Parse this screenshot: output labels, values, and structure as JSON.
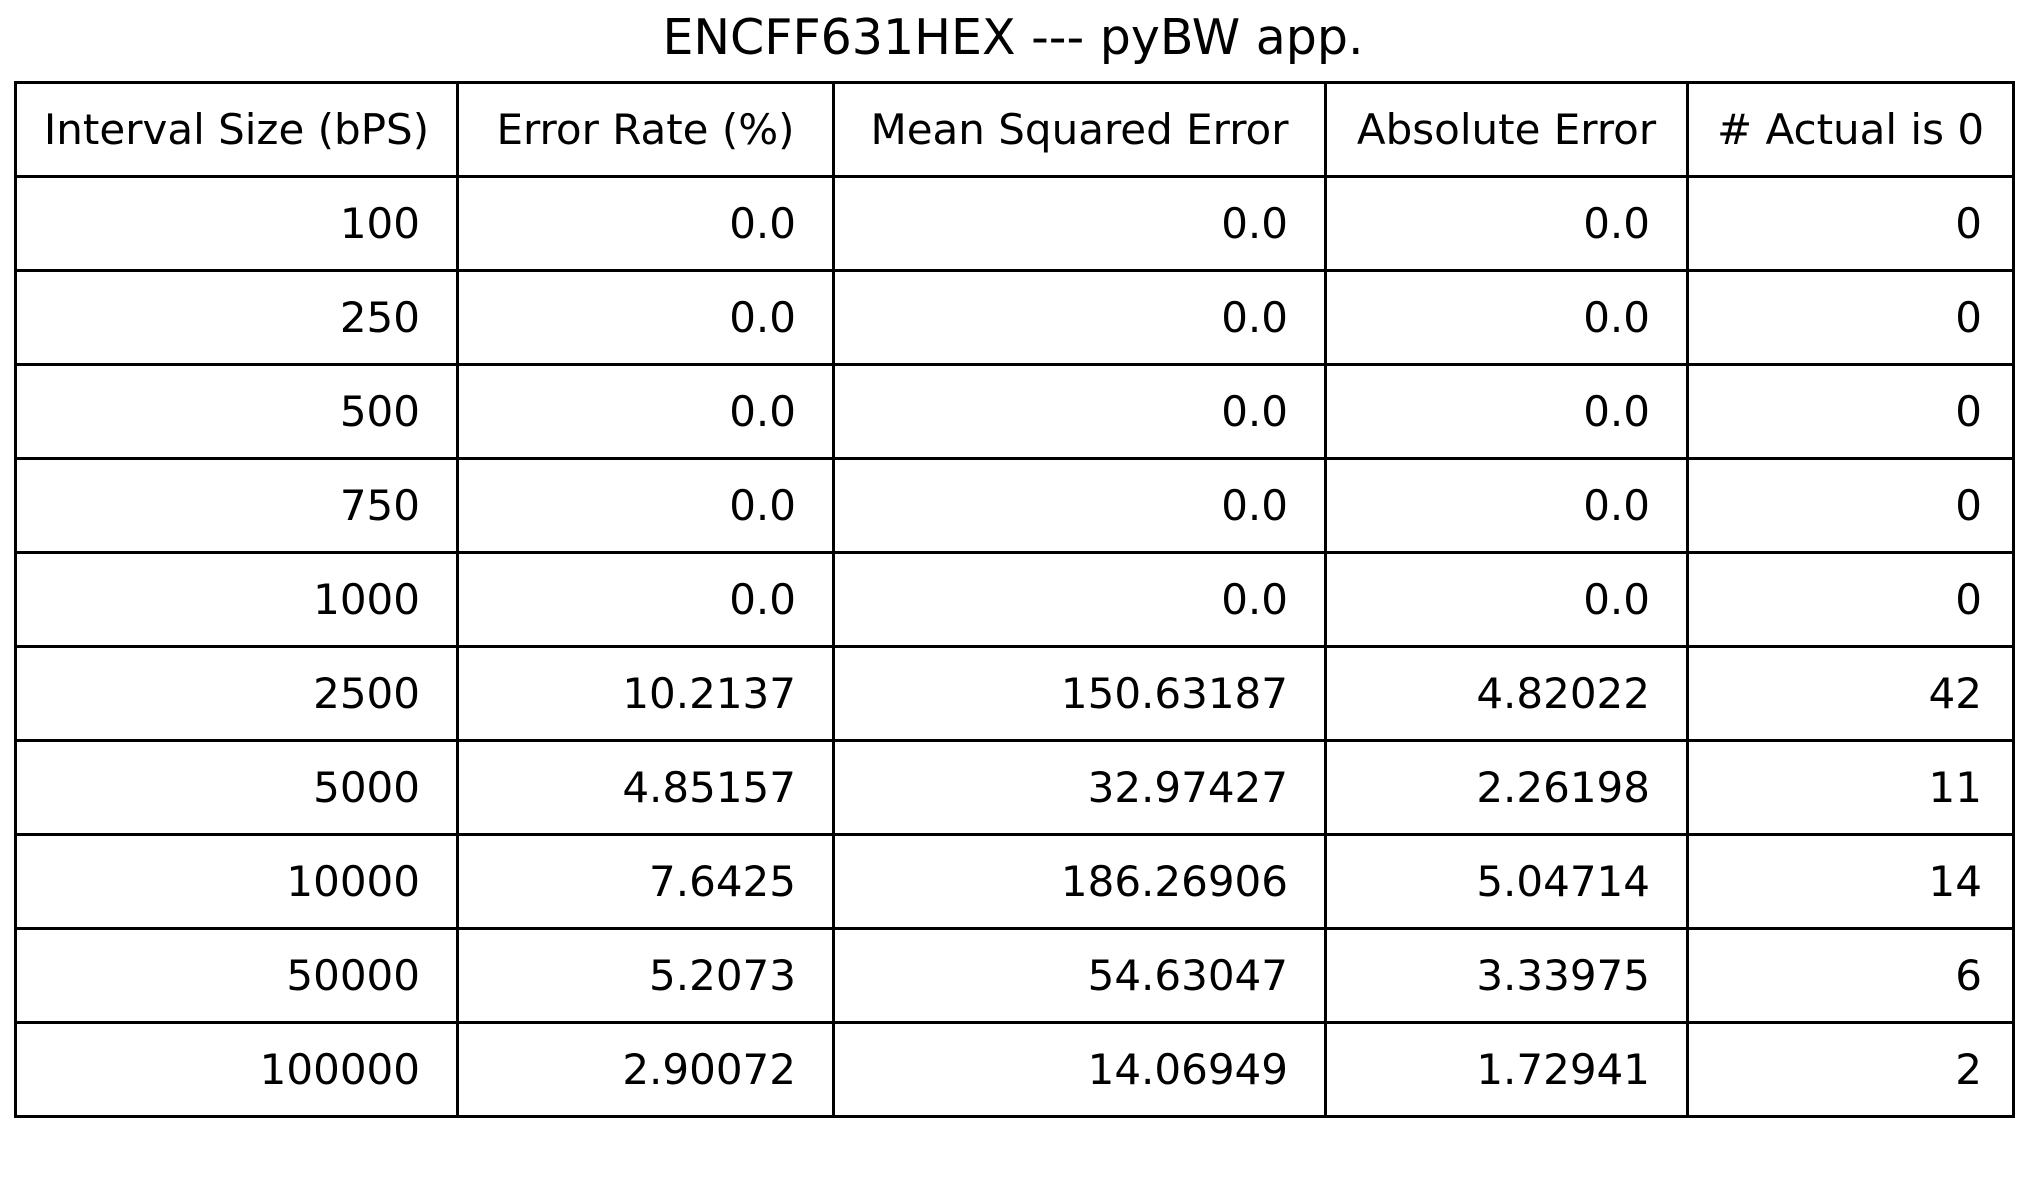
{
  "chart_data": {
    "type": "table",
    "title": "ENCFF631HEX --- pyBW app.",
    "columns": [
      "Interval Size (bPS)",
      "Error Rate (%)",
      "Mean Squared Error",
      "Absolute Error",
      "# Actual is 0"
    ],
    "rows": [
      [
        "100",
        "0.0",
        "0.0",
        "0.0",
        "0"
      ],
      [
        "250",
        "0.0",
        "0.0",
        "0.0",
        "0"
      ],
      [
        "500",
        "0.0",
        "0.0",
        "0.0",
        "0"
      ],
      [
        "750",
        "0.0",
        "0.0",
        "0.0",
        "0"
      ],
      [
        "1000",
        "0.0",
        "0.0",
        "0.0",
        "0"
      ],
      [
        "2500",
        "10.2137",
        "150.63187",
        "4.82022",
        "42"
      ],
      [
        "5000",
        "4.85157",
        "32.97427",
        "2.26198",
        "11"
      ],
      [
        "10000",
        "7.6425",
        "186.26906",
        "5.04714",
        "14"
      ],
      [
        "50000",
        "5.2073",
        "54.63047",
        "3.33975",
        "6"
      ],
      [
        "100000",
        "2.90072",
        "14.06949",
        "1.72941",
        "2"
      ]
    ]
  }
}
